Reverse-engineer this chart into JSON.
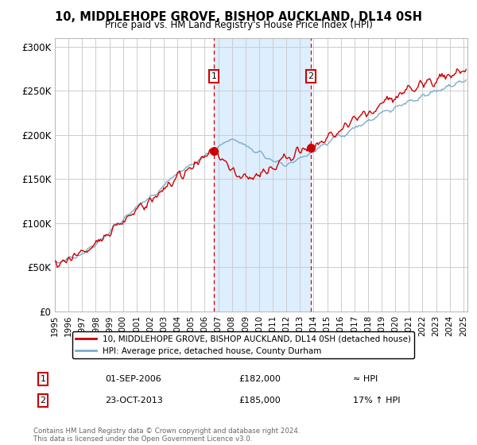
{
  "title": "10, MIDDLEHOPE GROVE, BISHOP AUCKLAND, DL14 0SH",
  "subtitle": "Price paid vs. HM Land Registry's House Price Index (HPI)",
  "legend_line1": "10, MIDDLEHOPE GROVE, BISHOP AUCKLAND, DL14 0SH (detached house)",
  "legend_line2": "HPI: Average price, detached house, County Durham",
  "annotation1_date": "01-SEP-2006",
  "annotation1_price": "£182,000",
  "annotation1_hpi": "≈ HPI",
  "annotation2_date": "23-OCT-2013",
  "annotation2_price": "£185,000",
  "annotation2_hpi": "17% ↑ HPI",
  "footer": "Contains HM Land Registry data © Crown copyright and database right 2024.\nThis data is licensed under the Open Government Licence v3.0.",
  "red_color": "#cc0000",
  "blue_color": "#7aadcc",
  "shading_color": "#ddeeff",
  "annotation_box_color": "#cc0000",
  "ylim": [
    0,
    310000
  ],
  "yticks": [
    0,
    50000,
    100000,
    150000,
    200000,
    250000,
    300000
  ],
  "ytick_labels": [
    "£0",
    "£50K",
    "£100K",
    "£150K",
    "£200K",
    "£250K",
    "£300K"
  ],
  "marker1_x": 2006.67,
  "marker1_y": 182000,
  "marker2_x": 2013.8,
  "marker2_y": 185000,
  "xmin": 1995,
  "xmax": 2025.3
}
